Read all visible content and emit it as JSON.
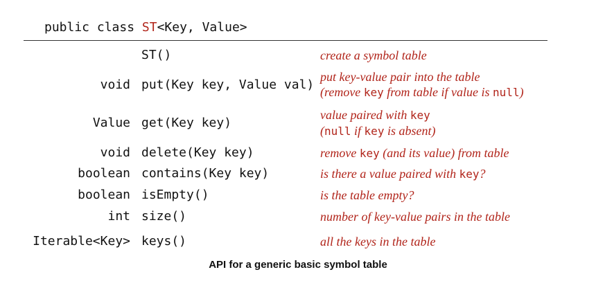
{
  "header": {
    "prefix": "public class ",
    "class_name": "ST",
    "type_params": "<Key, Value>"
  },
  "rows": [
    {
      "ret": "",
      "sig": "ST()",
      "desc": [
        "create a symbol table"
      ]
    },
    {
      "ret": "void",
      "sig": "put(Key key, Value val)",
      "desc": [
        "put key-value pair into the table",
        "(remove ",
        "key",
        " from table if value is ",
        "null",
        ")"
      ]
    },
    {
      "ret": "Value",
      "sig": "get(Key key)",
      "desc": [
        "value paired with ",
        "key",
        "(",
        "null",
        " if ",
        "key",
        " is absent)"
      ]
    },
    {
      "ret": "void",
      "sig": "delete(Key key)",
      "desc": [
        "remove ",
        "key",
        " (and its value) from table"
      ]
    },
    {
      "ret": "boolean",
      "sig": "contains(Key key)",
      "desc": [
        "is there a value paired with ",
        "key",
        "?"
      ]
    },
    {
      "ret": "boolean",
      "sig": "isEmpty()",
      "desc": [
        "is the table empty?"
      ]
    },
    {
      "ret": "int",
      "sig": "size()",
      "desc": [
        "number of key-value pairs in the table"
      ]
    },
    {
      "ret": "Iterable<Key>",
      "sig": "keys()",
      "desc": [
        "all the keys in the table"
      ]
    }
  ],
  "caption": "API for a generic basic symbol table",
  "colors": {
    "accent_red": "#b1241a",
    "text": "#111111",
    "rule": "#333333"
  }
}
